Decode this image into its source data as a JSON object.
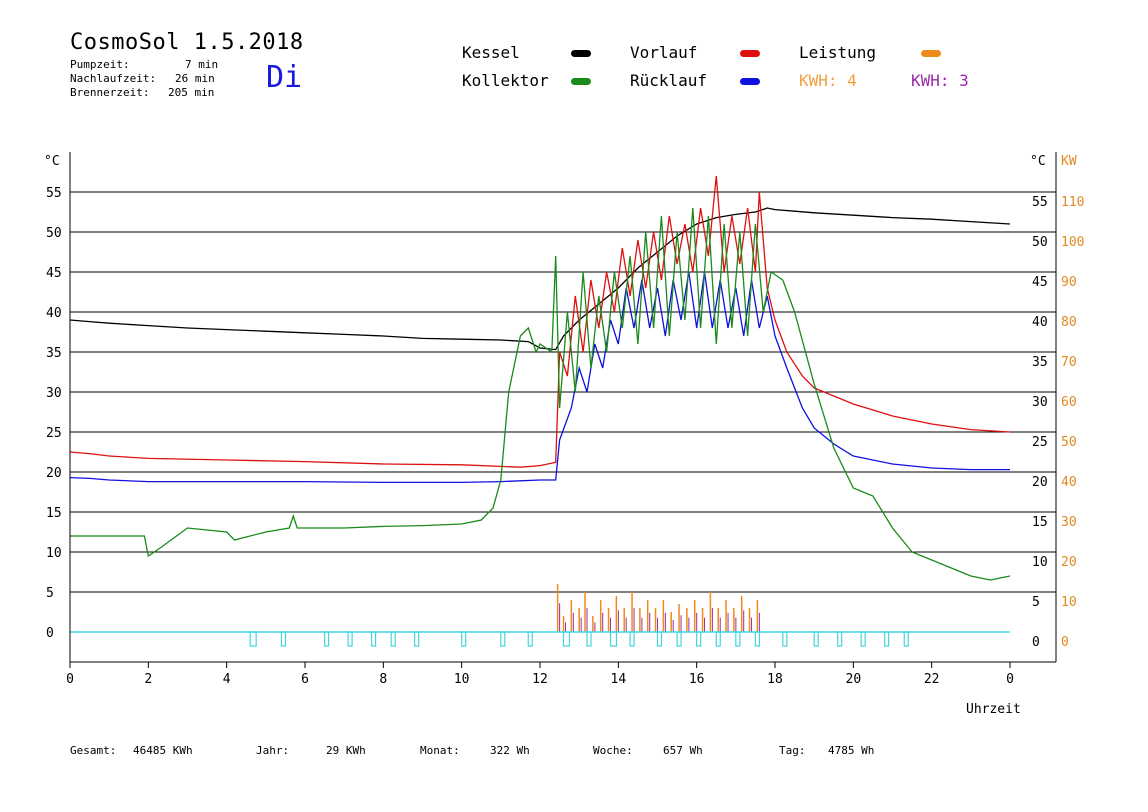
{
  "header": {
    "title": "CosmoSol 1.5.2018",
    "day": "Di",
    "pump_label": "Pumpzeit:",
    "pump_value": "7 min",
    "nach_label": "Nachlaufzeit:",
    "nach_value": "26 min",
    "brenner_label": "Brennerzeit:",
    "brenner_value": "205 min"
  },
  "legend": {
    "kessel": {
      "label": "Kessel",
      "color": "#000000"
    },
    "kollektor": {
      "label": "Kollektor",
      "color": "#1a8a1a"
    },
    "vorlauf": {
      "label": "Vorlauf",
      "color": "#e01010"
    },
    "ruecklauf": {
      "label": "Rücklauf",
      "color": "#1010e0"
    },
    "leistung": {
      "label": "Leistung",
      "color": "#f08a1a"
    },
    "kwh1": {
      "label": "KWH: 4",
      "color": "#f0a040"
    },
    "kwh2": {
      "label": "KWH: 3",
      "color": "#9a2aa8"
    }
  },
  "footer": {
    "gesamt_label": "Gesamt:",
    "gesamt_value": "46485 KWh",
    "jahr_label": "Jahr:",
    "jahr_value": "29 KWh",
    "monat_label": "Monat:",
    "monat_value": "322 Wh",
    "woche_label": "Woche:",
    "woche_value": "657 Wh",
    "tag_label": "Tag:",
    "tag_value": "4785 Wh"
  },
  "chart_data": {
    "type": "line",
    "xlabel": "Uhrzeit",
    "left_unit": "°C",
    "right_unit_temp": "°C",
    "right_unit_power": "KW",
    "x_ticks": [
      "0",
      "2",
      "4",
      "6",
      "8",
      "10",
      "12",
      "14",
      "16",
      "18",
      "20",
      "22",
      "0"
    ],
    "y_ticks": [
      0,
      5,
      10,
      15,
      20,
      25,
      30,
      35,
      40,
      45,
      50,
      55
    ],
    "kw_ticks": [
      0,
      10,
      20,
      30,
      40,
      50,
      60,
      70,
      80,
      90,
      100,
      110
    ],
    "xlim": [
      0,
      24
    ],
    "ylim": [
      -3.75,
      59.375
    ],
    "series": [
      {
        "name": "Kessel",
        "color": "#000000",
        "points": [
          [
            0,
            39.0
          ],
          [
            0.5,
            38.8
          ],
          [
            1,
            38.6
          ],
          [
            2,
            38.3
          ],
          [
            3,
            38.0
          ],
          [
            4,
            37.8
          ],
          [
            5,
            37.6
          ],
          [
            6,
            37.4
          ],
          [
            7,
            37.2
          ],
          [
            8,
            37.0
          ],
          [
            9,
            36.7
          ],
          [
            10,
            36.6
          ],
          [
            11,
            36.5
          ],
          [
            11.7,
            36.3
          ],
          [
            12,
            35.5
          ],
          [
            12.4,
            35.3
          ],
          [
            12.6,
            37.0
          ],
          [
            13,
            39.0
          ],
          [
            13.5,
            41.0
          ],
          [
            14,
            43.0
          ],
          [
            14.5,
            45.5
          ],
          [
            15,
            47.5
          ],
          [
            15.5,
            49.5
          ],
          [
            16,
            51.0
          ],
          [
            16.5,
            51.8
          ],
          [
            17,
            52.2
          ],
          [
            17.5,
            52.5
          ],
          [
            17.8,
            53.0
          ],
          [
            18,
            52.8
          ],
          [
            18.5,
            52.6
          ],
          [
            19,
            52.4
          ],
          [
            20,
            52.1
          ],
          [
            21,
            51.8
          ],
          [
            22,
            51.6
          ],
          [
            23,
            51.3
          ],
          [
            24,
            51.0
          ]
        ]
      },
      {
        "name": "Vorlauf",
        "color": "#e01010",
        "points": [
          [
            0,
            22.5
          ],
          [
            0.5,
            22.3
          ],
          [
            1,
            22.0
          ],
          [
            2,
            21.7
          ],
          [
            4,
            21.5
          ],
          [
            6,
            21.3
          ],
          [
            8,
            21.0
          ],
          [
            10,
            20.9
          ],
          [
            11,
            20.7
          ],
          [
            11.5,
            20.6
          ],
          [
            12,
            20.8
          ],
          [
            12.4,
            21.2
          ],
          [
            12.5,
            35.0
          ],
          [
            12.7,
            32.0
          ],
          [
            12.9,
            42.0
          ],
          [
            13.1,
            35.0
          ],
          [
            13.3,
            44.0
          ],
          [
            13.5,
            38.0
          ],
          [
            13.7,
            45.0
          ],
          [
            13.9,
            40.0
          ],
          [
            14.1,
            48.0
          ],
          [
            14.3,
            42.0
          ],
          [
            14.5,
            49.0
          ],
          [
            14.7,
            43.0
          ],
          [
            14.9,
            50.0
          ],
          [
            15.1,
            44.0
          ],
          [
            15.3,
            52.0
          ],
          [
            15.5,
            46.0
          ],
          [
            15.7,
            51.0
          ],
          [
            15.9,
            45.0
          ],
          [
            16.1,
            53.0
          ],
          [
            16.3,
            47.0
          ],
          [
            16.5,
            57.0
          ],
          [
            16.7,
            45.0
          ],
          [
            16.9,
            52.0
          ],
          [
            17.1,
            46.0
          ],
          [
            17.3,
            53.0
          ],
          [
            17.5,
            45.0
          ],
          [
            17.6,
            55.0
          ],
          [
            17.8,
            43.0
          ],
          [
            18,
            39.0
          ],
          [
            18.3,
            35.0
          ],
          [
            18.7,
            32.0
          ],
          [
            19,
            30.5
          ],
          [
            19.5,
            29.5
          ],
          [
            20,
            28.5
          ],
          [
            21,
            27.0
          ],
          [
            22,
            26.0
          ],
          [
            23,
            25.3
          ],
          [
            24,
            25.0
          ]
        ]
      },
      {
        "name": "Rücklauf",
        "color": "#1010e0",
        "points": [
          [
            0,
            19.3
          ],
          [
            0.5,
            19.2
          ],
          [
            1,
            19.0
          ],
          [
            2,
            18.8
          ],
          [
            4,
            18.8
          ],
          [
            6,
            18.8
          ],
          [
            8,
            18.7
          ],
          [
            10,
            18.7
          ],
          [
            11,
            18.8
          ],
          [
            12,
            19.0
          ],
          [
            12.4,
            19.0
          ],
          [
            12.5,
            24.0
          ],
          [
            12.8,
            28.0
          ],
          [
            13,
            33.0
          ],
          [
            13.2,
            30.0
          ],
          [
            13.4,
            36.0
          ],
          [
            13.6,
            33.0
          ],
          [
            13.8,
            39.0
          ],
          [
            14,
            36.0
          ],
          [
            14.2,
            43.0
          ],
          [
            14.4,
            38.0
          ],
          [
            14.6,
            44.0
          ],
          [
            14.8,
            38.0
          ],
          [
            15,
            43.0
          ],
          [
            15.2,
            37.0
          ],
          [
            15.4,
            44.0
          ],
          [
            15.6,
            39.0
          ],
          [
            15.8,
            45.0
          ],
          [
            16,
            38.0
          ],
          [
            16.2,
            45.0
          ],
          [
            16.4,
            38.0
          ],
          [
            16.6,
            44.0
          ],
          [
            16.8,
            38.0
          ],
          [
            17,
            43.0
          ],
          [
            17.2,
            37.0
          ],
          [
            17.4,
            44.0
          ],
          [
            17.6,
            38.0
          ],
          [
            17.8,
            42.0
          ],
          [
            18,
            37.0
          ],
          [
            18.3,
            33.0
          ],
          [
            18.7,
            28.0
          ],
          [
            19,
            25.5
          ],
          [
            19.5,
            23.5
          ],
          [
            20,
            22.0
          ],
          [
            21,
            21.0
          ],
          [
            22,
            20.5
          ],
          [
            23,
            20.3
          ],
          [
            24,
            20.3
          ]
        ]
      },
      {
        "name": "Kollektor",
        "color": "#1a8a1a",
        "points": [
          [
            0,
            12.0
          ],
          [
            1,
            12.0
          ],
          [
            1.9,
            12.0
          ],
          [
            2,
            9.5
          ],
          [
            2.3,
            10.5
          ],
          [
            3,
            13.0
          ],
          [
            4,
            12.5
          ],
          [
            4.2,
            11.5
          ],
          [
            5,
            12.5
          ],
          [
            5.6,
            13.0
          ],
          [
            5.7,
            14.5
          ],
          [
            5.8,
            13.0
          ],
          [
            7,
            13.0
          ],
          [
            8,
            13.2
          ],
          [
            9,
            13.3
          ],
          [
            10,
            13.5
          ],
          [
            10.5,
            14.0
          ],
          [
            10.8,
            15.5
          ],
          [
            11,
            19.0
          ],
          [
            11.2,
            30.0
          ],
          [
            11.5,
            37.0
          ],
          [
            11.7,
            38.0
          ],
          [
            11.9,
            35.0
          ],
          [
            12,
            36.0
          ],
          [
            12.3,
            35.0
          ],
          [
            12.4,
            47.0
          ],
          [
            12.5,
            28.0
          ],
          [
            12.7,
            40.0
          ],
          [
            12.9,
            30.0
          ],
          [
            13.1,
            45.0
          ],
          [
            13.3,
            33.0
          ],
          [
            13.5,
            42.0
          ],
          [
            13.7,
            35.0
          ],
          [
            13.9,
            45.0
          ],
          [
            14.1,
            38.0
          ],
          [
            14.3,
            47.0
          ],
          [
            14.5,
            36.0
          ],
          [
            14.7,
            50.0
          ],
          [
            14.9,
            38.0
          ],
          [
            15.1,
            52.0
          ],
          [
            15.3,
            37.0
          ],
          [
            15.5,
            50.0
          ],
          [
            15.7,
            39.0
          ],
          [
            15.9,
            53.0
          ],
          [
            16.1,
            38.0
          ],
          [
            16.3,
            52.0
          ],
          [
            16.5,
            36.0
          ],
          [
            16.7,
            51.0
          ],
          [
            16.9,
            38.0
          ],
          [
            17.1,
            50.0
          ],
          [
            17.3,
            37.0
          ],
          [
            17.5,
            51.0
          ],
          [
            17.7,
            40.0
          ],
          [
            17.9,
            45.0
          ],
          [
            18.2,
            44.0
          ],
          [
            18.5,
            40.0
          ],
          [
            19,
            31.0
          ],
          [
            19.5,
            23.0
          ],
          [
            20,
            18.0
          ],
          [
            20.5,
            17.0
          ],
          [
            21,
            13.0
          ],
          [
            21.5,
            10.0
          ],
          [
            22,
            9.0
          ],
          [
            22.5,
            8.0
          ],
          [
            23,
            7.0
          ],
          [
            23.5,
            6.5
          ],
          [
            24,
            7.0
          ]
        ]
      }
    ],
    "power_bars": [
      [
        12.45,
        6
      ],
      [
        12.6,
        2
      ],
      [
        12.8,
        4
      ],
      [
        13.0,
        3
      ],
      [
        13.15,
        5
      ],
      [
        13.35,
        2
      ],
      [
        13.55,
        4
      ],
      [
        13.75,
        3
      ],
      [
        13.95,
        4.5
      ],
      [
        14.15,
        3
      ],
      [
        14.35,
        5
      ],
      [
        14.55,
        3
      ],
      [
        14.75,
        4
      ],
      [
        14.95,
        3
      ],
      [
        15.15,
        4
      ],
      [
        15.35,
        2.5
      ],
      [
        15.55,
        3.5
      ],
      [
        15.75,
        3
      ],
      [
        15.95,
        4
      ],
      [
        16.15,
        3
      ],
      [
        16.35,
        5
      ],
      [
        16.55,
        3
      ],
      [
        16.75,
        4
      ],
      [
        16.95,
        3
      ],
      [
        17.15,
        4.5
      ],
      [
        17.35,
        3
      ],
      [
        17.55,
        4
      ]
    ],
    "pump_blocks": [
      [
        0,
        0
      ],
      [
        4.6,
        1.5
      ],
      [
        5.4,
        1.0
      ],
      [
        6.5,
        1.0
      ],
      [
        7.1,
        1.0
      ],
      [
        7.7,
        1.0
      ],
      [
        8.2,
        1.0
      ],
      [
        8.8,
        1.0
      ],
      [
        10.0,
        1.0
      ],
      [
        11.0,
        1.0
      ],
      [
        11.7,
        1.0
      ],
      [
        12.6,
        1.5
      ],
      [
        13.2,
        1.0
      ],
      [
        13.8,
        1.5
      ],
      [
        14.3,
        1.0
      ],
      [
        15.0,
        1.0
      ],
      [
        15.5,
        1.0
      ],
      [
        16.0,
        1.0
      ],
      [
        16.5,
        1.0
      ],
      [
        17.0,
        1.0
      ],
      [
        17.5,
        1.0
      ],
      [
        18.2,
        1.0
      ],
      [
        19.0,
        1.0
      ],
      [
        19.6,
        1.0
      ],
      [
        20.2,
        1.0
      ],
      [
        20.8,
        1.0
      ],
      [
        21.3,
        1.0
      ]
    ]
  }
}
